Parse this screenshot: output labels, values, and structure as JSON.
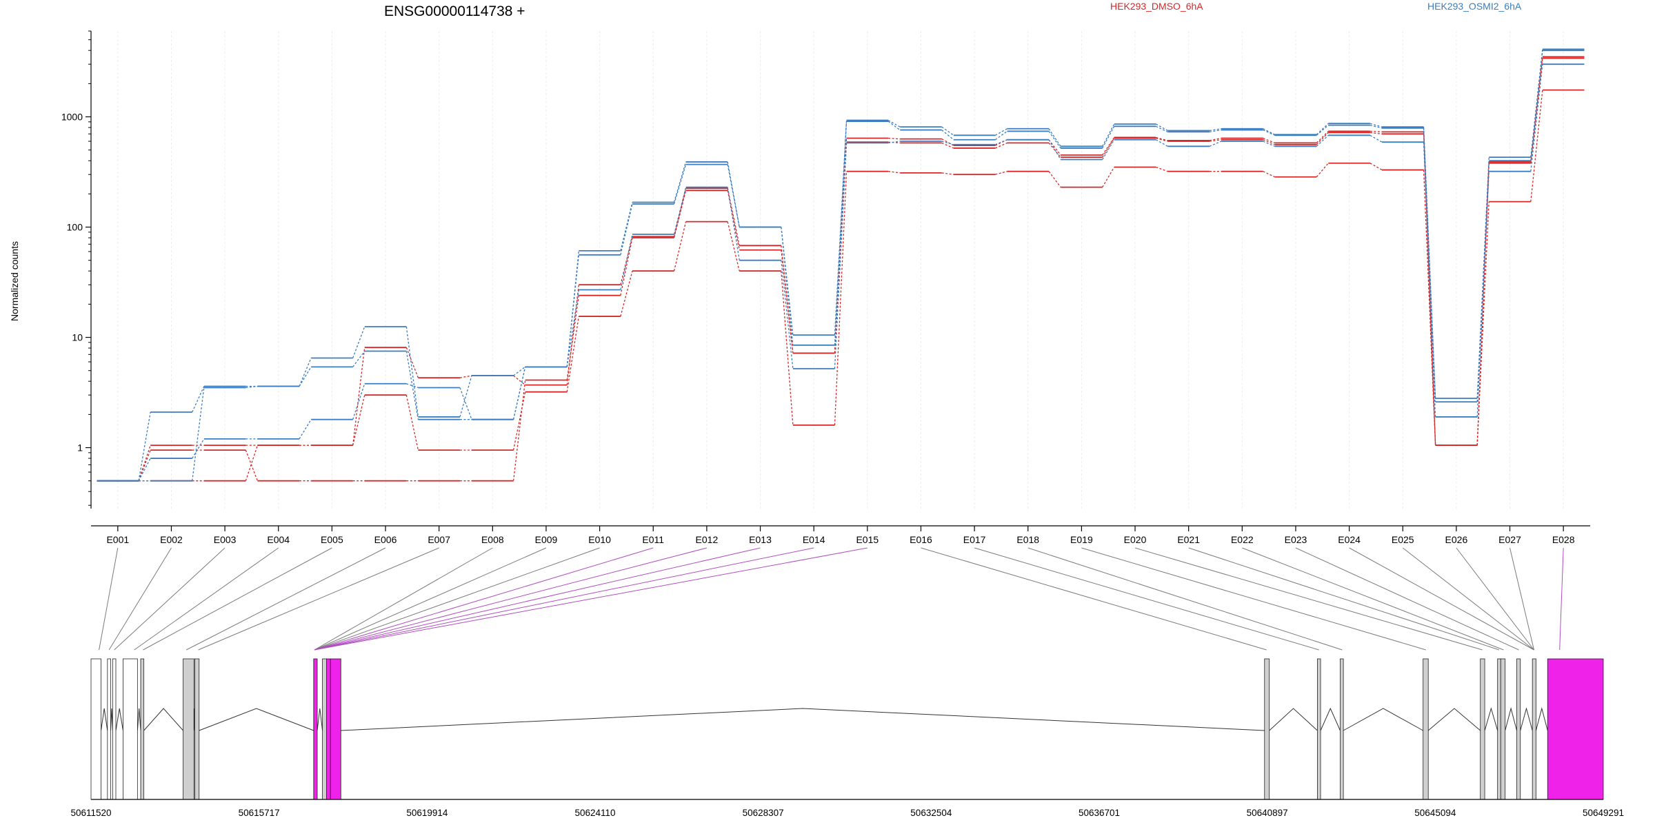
{
  "chart_data": {
    "type": "line",
    "title": "ENSG00000114738 +",
    "ylabel": "Normalized counts",
    "yscale": "log",
    "ylim": [
      0.28,
      6000
    ],
    "yticks": [
      1,
      10,
      100,
      1000
    ],
    "ytick_labels": [
      "1",
      "10",
      "100",
      "1000"
    ],
    "categories": [
      "E001",
      "E002",
      "E003",
      "E004",
      "E005",
      "E006",
      "E007",
      "E008",
      "E009",
      "E010",
      "E011",
      "E012",
      "E013",
      "E014",
      "E015",
      "E016",
      "E017",
      "E018",
      "E019",
      "E020",
      "E021",
      "E022",
      "E023",
      "E024",
      "E025",
      "E026",
      "E027",
      "E028"
    ],
    "legend": [
      {
        "label": "HEK293_DMSO_6hA",
        "color": "#d62728"
      },
      {
        "label": "HEK293_OSMI2_6hA",
        "color": "#3a7dc0"
      }
    ],
    "series": [
      {
        "group": "HEK293_DMSO_6hA",
        "color": "#d62728",
        "values": [
          0.5,
          1.05,
          1.05,
          1.05,
          1.05,
          8.1,
          4.3,
          4.5,
          3.7,
          30,
          82,
          225,
          68,
          7.2,
          640,
          630,
          550,
          620,
          450,
          650,
          610,
          640,
          580,
          740,
          730,
          1.05,
          390,
          3500
        ]
      },
      {
        "group": "HEK293_DMSO_6hA",
        "color": "#d62728",
        "values": [
          0.5,
          0.95,
          0.95,
          0.5,
          0.5,
          0.5,
          0.5,
          0.5,
          4.1,
          24,
          80,
          215,
          62,
          7.2,
          590,
          580,
          520,
          580,
          430,
          640,
          600,
          620,
          560,
          720,
          700,
          1.05,
          380,
          3400
        ]
      },
      {
        "group": "HEK293_DMSO_6hA",
        "color": "#d62728",
        "values": [
          0.5,
          0.5,
          0.5,
          1.05,
          1.05,
          3.0,
          0.95,
          0.95,
          3.2,
          15.5,
          40,
          112,
          40,
          1.6,
          320,
          310,
          300,
          320,
          230,
          350,
          320,
          320,
          285,
          380,
          330,
          1.05,
          170,
          1750
        ]
      },
      {
        "group": "HEK293_OSMI2_6hA",
        "color": "#3a7dc0",
        "values": [
          0.5,
          2.1,
          3.6,
          3.6,
          6.5,
          12.5,
          1.9,
          4.5,
          5.4,
          61,
          168,
          390,
          100,
          10.5,
          930,
          810,
          680,
          780,
          540,
          860,
          750,
          780,
          690,
          870,
          810,
          2.8,
          430,
          4100
        ]
      },
      {
        "group": "HEK293_OSMI2_6hA",
        "color": "#3a7dc0",
        "values": [
          0.5,
          0.8,
          1.2,
          1.2,
          1.8,
          3.8,
          3.5,
          1.8,
          5.4,
          56,
          162,
          370,
          100,
          8.5,
          910,
          760,
          620,
          740,
          520,
          820,
          730,
          760,
          680,
          840,
          790,
          2.6,
          400,
          4000
        ]
      },
      {
        "group": "HEK293_OSMI2_6hA",
        "color": "#3a7dc0",
        "values": [
          0.5,
          0.5,
          3.5,
          3.6,
          5.4,
          7.5,
          1.8,
          1.8,
          5.4,
          27,
          86,
          230,
          50,
          5.2,
          580,
          600,
          560,
          620,
          410,
          620,
          540,
          600,
          540,
          680,
          590,
          1.9,
          320,
          3000
        ]
      }
    ],
    "gene_model": {
      "range": [
        50611520,
        50649291
      ],
      "ticks": [
        50611520,
        50615717,
        50619914,
        50624110,
        50628307,
        50632504,
        50636701,
        50640897,
        50645094,
        50649291
      ],
      "tick_labels": [
        "50611520",
        "50615717",
        "50619914",
        "50624110",
        "50628307",
        "50632504",
        "50636701",
        "50640897",
        "50645094",
        "50649291"
      ],
      "highlighted_exons": [
        "E011",
        "E012",
        "E013",
        "E014",
        "E015",
        "E028"
      ],
      "highlight_color": "#ee22e8",
      "exon_fill_color": "#cfcfcf",
      "exons": [
        {
          "start": 50611520,
          "end": 50611770,
          "color": "#ffffff"
        },
        {
          "start": 50611930,
          "end": 50612010,
          "color": "#ffffff"
        },
        {
          "start": 50612060,
          "end": 50612140,
          "color": "#ffffff"
        },
        {
          "start": 50612320,
          "end": 50612680,
          "color": "#ffffff"
        },
        {
          "start": 50612760,
          "end": 50612840,
          "color": "#cfcfcf"
        },
        {
          "start": 50613820,
          "end": 50614090,
          "color": "#cfcfcf"
        },
        {
          "start": 50614110,
          "end": 50614220,
          "color": "#cfcfcf"
        },
        {
          "start": 50617080,
          "end": 50617170,
          "color": "#ee22e8"
        },
        {
          "start": 50617300,
          "end": 50617400,
          "color": "#cfcfcf"
        },
        {
          "start": 50617400,
          "end": 50617500,
          "color": "#ee22e8"
        },
        {
          "start": 50617500,
          "end": 50617760,
          "color": "#ee22e8"
        },
        {
          "start": 50640830,
          "end": 50640950,
          "color": "#cfcfcf"
        },
        {
          "start": 50642150,
          "end": 50642230,
          "color": "#cfcfcf"
        },
        {
          "start": 50642720,
          "end": 50642800,
          "color": "#cfcfcf"
        },
        {
          "start": 50644790,
          "end": 50644920,
          "color": "#cfcfcf"
        },
        {
          "start": 50646220,
          "end": 50646330,
          "color": "#cfcfcf"
        },
        {
          "start": 50646650,
          "end": 50646730,
          "color": "#cfcfcf"
        },
        {
          "start": 50646730,
          "end": 50646840,
          "color": "#cfcfcf"
        },
        {
          "start": 50647130,
          "end": 50647220,
          "color": "#cfcfcf"
        },
        {
          "start": 50647520,
          "end": 50647610,
          "color": "#cfcfcf"
        },
        {
          "start": 50647900,
          "end": 50649291,
          "color": "#ee22e8"
        }
      ],
      "exon_bin_mapping": [
        1,
        2,
        3,
        4,
        5,
        6,
        7,
        8,
        9,
        10,
        11,
        12,
        13,
        14,
        15,
        16,
        17,
        18,
        19,
        20,
        21,
        22,
        23,
        24,
        25,
        26,
        27,
        28
      ]
    }
  }
}
